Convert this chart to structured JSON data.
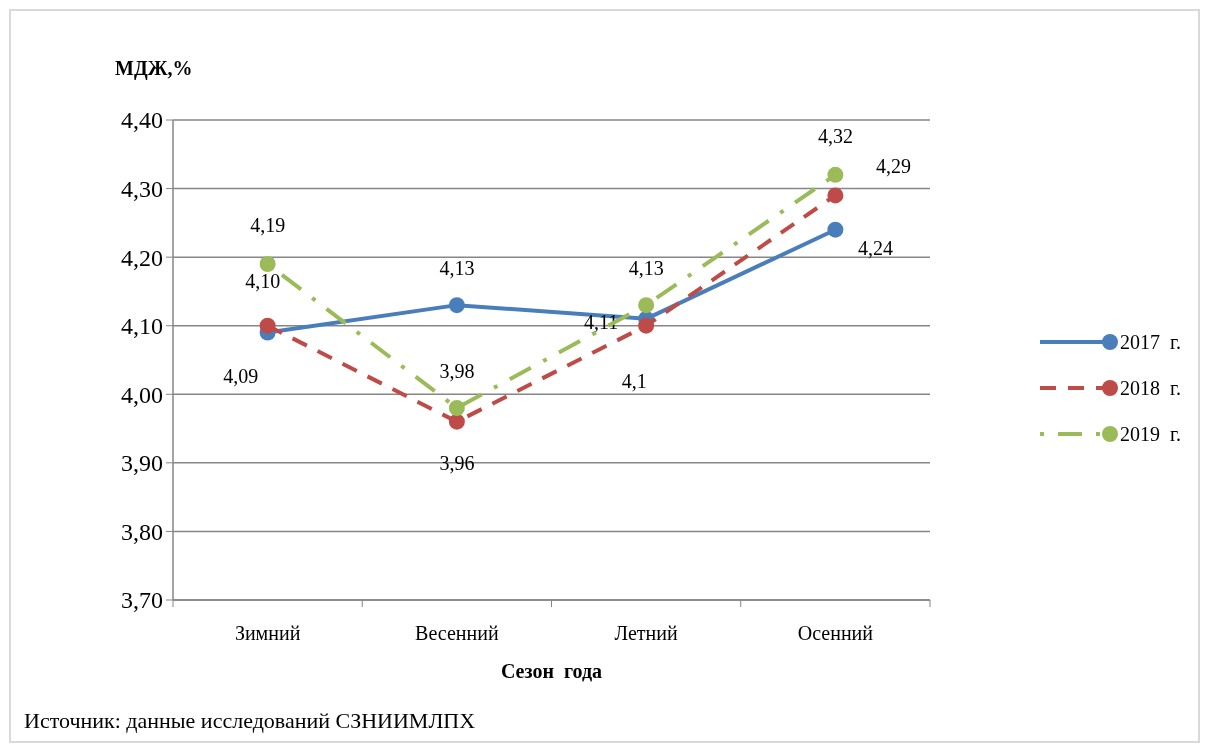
{
  "chart_data": {
    "type": "line",
    "ylabel": "МДЖ,%",
    "xlabel": "Сезон  года",
    "categories": [
      "Зимний",
      "Весенний",
      "Летний",
      "Осенний"
    ],
    "series": [
      {
        "name": "2017  г.",
        "color": "#4a7ebb",
        "line_style": "solid",
        "values": [
          4.09,
          4.13,
          4.11,
          4.24
        ],
        "value_labels": [
          "4,09",
          "4,13",
          "4,11",
          "4,24"
        ]
      },
      {
        "name": "2018  г.",
        "color": "#be4b48",
        "line_style": "dashed",
        "values": [
          4.1,
          3.96,
          4.1,
          4.29
        ],
        "value_labels": [
          "4,10",
          "3,96",
          "4,1",
          "4,29"
        ]
      },
      {
        "name": "2019  г.",
        "color": "#9bbb59",
        "line_style": "dotted",
        "values": [
          4.19,
          3.98,
          4.13,
          4.32
        ],
        "value_labels": [
          "4,19",
          "3,98",
          "4,13",
          "4,32"
        ]
      }
    ],
    "ylim": [
      3.7,
      4.4
    ],
    "yticks": [
      {
        "value": 3.7,
        "label": "3,70"
      },
      {
        "value": 3.8,
        "label": "3,80"
      },
      {
        "value": 3.9,
        "label": "3,90"
      },
      {
        "value": 4.0,
        "label": "4,00"
      },
      {
        "value": 4.1,
        "label": "4,10"
      },
      {
        "value": 4.2,
        "label": "4,20"
      },
      {
        "value": 4.3,
        "label": "4,30"
      },
      {
        "value": 4.4,
        "label": "4,40"
      }
    ],
    "grid": "y",
    "legend": "right",
    "marker": "circle",
    "annotations": [
      "Источник: данные исследований СЗНИИМЛПХ"
    ]
  }
}
